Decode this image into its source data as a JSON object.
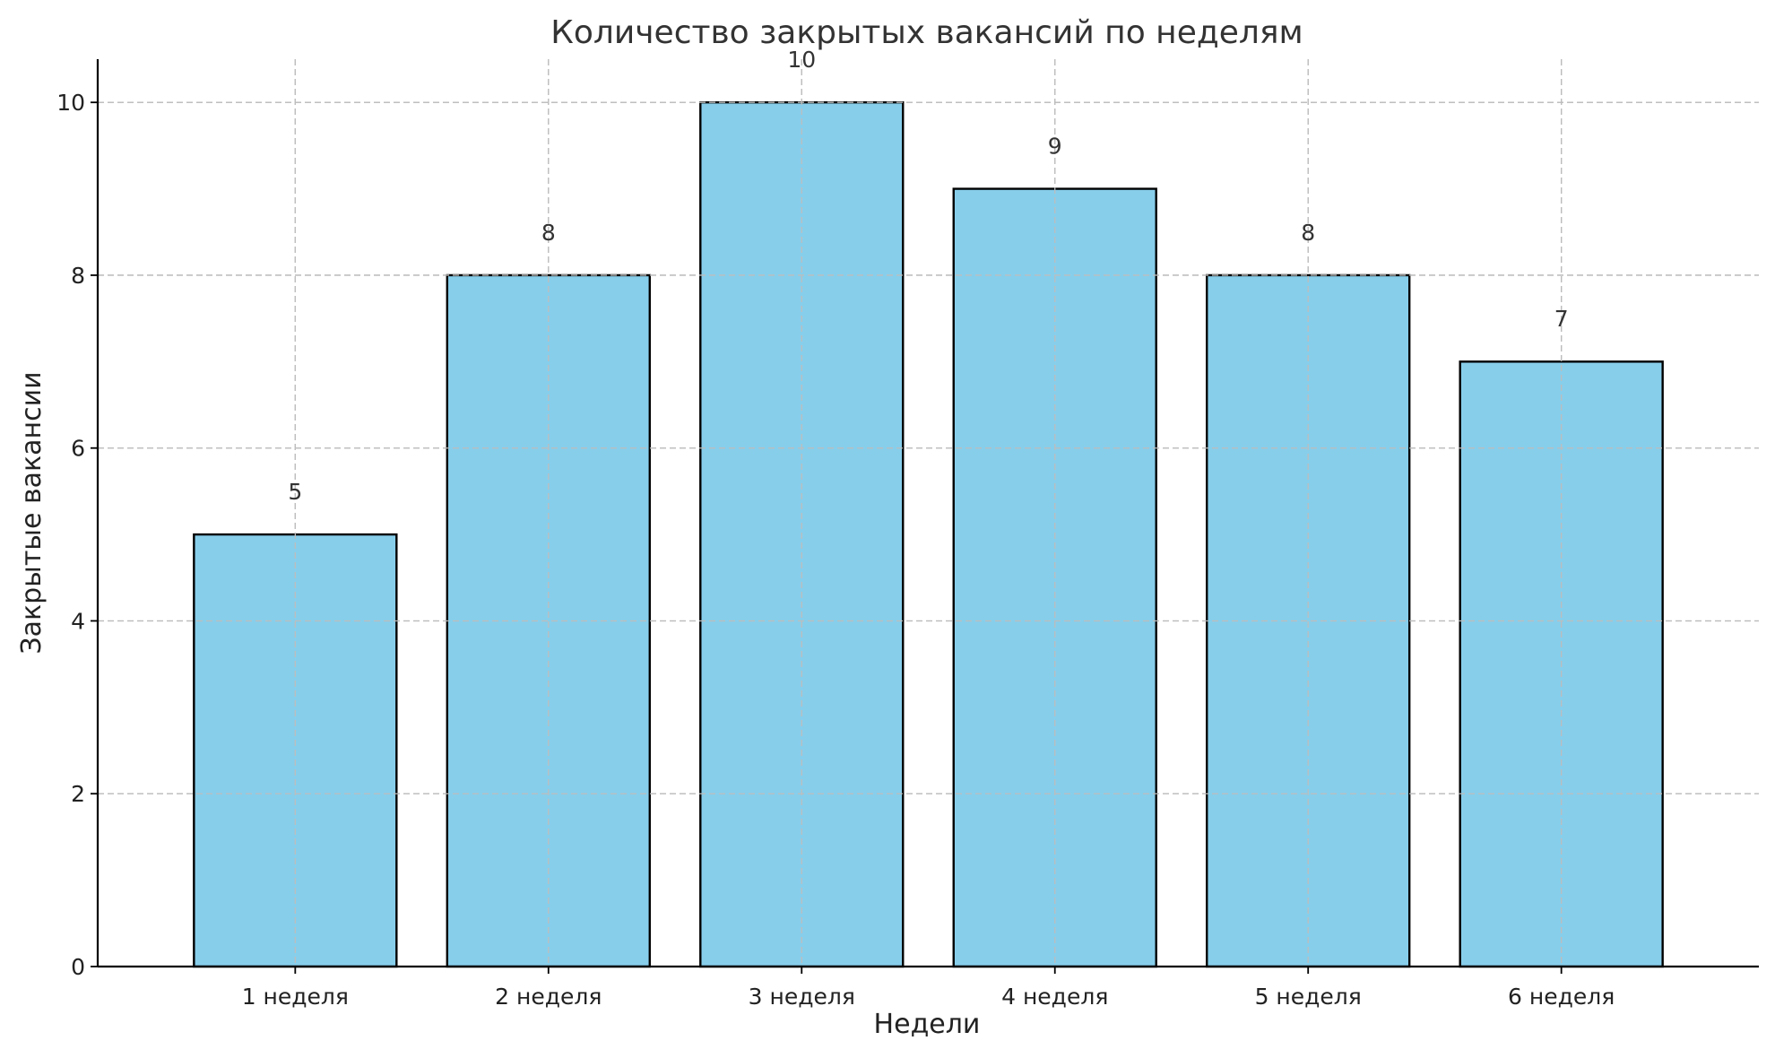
{
  "chart_data": {
    "type": "bar",
    "title": "Количество закрытых вакансий по неделям",
    "xlabel": "Недели",
    "ylabel": "Закрытые вакансии",
    "categories": [
      "1 неделя",
      "2 неделя",
      "3 неделя",
      "4 неделя",
      "5 неделя",
      "6 неделя"
    ],
    "values": [
      5,
      8,
      10,
      9,
      8,
      7
    ],
    "data_labels": [
      "5",
      "8",
      "10",
      "9",
      "8",
      "7"
    ],
    "ylim": [
      0,
      10.5
    ],
    "yticks": [
      0,
      2,
      4,
      6,
      8,
      10
    ],
    "ytick_labels": [
      "0",
      "2",
      "4",
      "6",
      "8",
      "10"
    ],
    "grid": true,
    "colors": {
      "bar_fill": "#87CEEB",
      "bar_edge": "#000000"
    }
  }
}
